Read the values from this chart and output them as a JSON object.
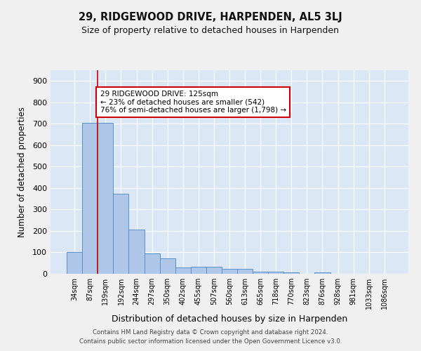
{
  "title": "29, RIDGEWOOD DRIVE, HARPENDEN, AL5 3LJ",
  "subtitle": "Size of property relative to detached houses in Harpenden",
  "xlabel": "Distribution of detached houses by size in Harpenden",
  "ylabel": "Number of detached properties",
  "categories": [
    "34sqm",
    "87sqm",
    "139sqm",
    "192sqm",
    "244sqm",
    "297sqm",
    "350sqm",
    "402sqm",
    "455sqm",
    "507sqm",
    "560sqm",
    "613sqm",
    "665sqm",
    "718sqm",
    "770sqm",
    "823sqm",
    "876sqm",
    "928sqm",
    "981sqm",
    "1033sqm",
    "1086sqm"
  ],
  "values": [
    100,
    703,
    703,
    375,
    205,
    95,
    73,
    30,
    32,
    32,
    22,
    22,
    10,
    10,
    8,
    0,
    8,
    0,
    0,
    0,
    0
  ],
  "bar_color": "#aec6e8",
  "bar_edge_color": "#5b8fc4",
  "background_color": "#dce7f5",
  "grid_color": "#ffffff",
  "vline_x_index": 2,
  "vline_color": "#cc0000",
  "annotation_text": "29 RIDGEWOOD DRIVE: 125sqm\n← 23% of detached houses are smaller (542)\n76% of semi-detached houses are larger (1,798) →",
  "annotation_box_color": "#ffffff",
  "annotation_box_edge_color": "#cc0000",
  "ylim": [
    0,
    950
  ],
  "yticks": [
    0,
    100,
    200,
    300,
    400,
    500,
    600,
    700,
    800,
    900
  ],
  "footer_line1": "Contains HM Land Registry data © Crown copyright and database right 2024.",
  "footer_line2": "Contains public sector information licensed under the Open Government Licence v3.0.",
  "fig_bg": "#f0f0f0"
}
